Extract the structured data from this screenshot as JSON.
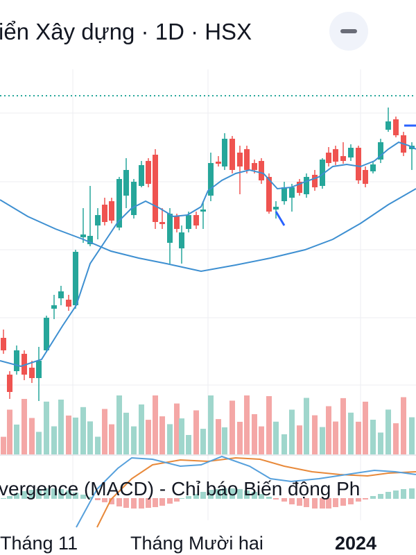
{
  "header": {
    "title": "iển Xây dựng · 1D · HSX"
  },
  "indicator": {
    "label": "vergence (MACD) - Chỉ báo Biến động Ph"
  },
  "x_axis": {
    "labels": [
      "Tháng 11",
      "Tháng Mười hai",
      "2024"
    ]
  }
}
